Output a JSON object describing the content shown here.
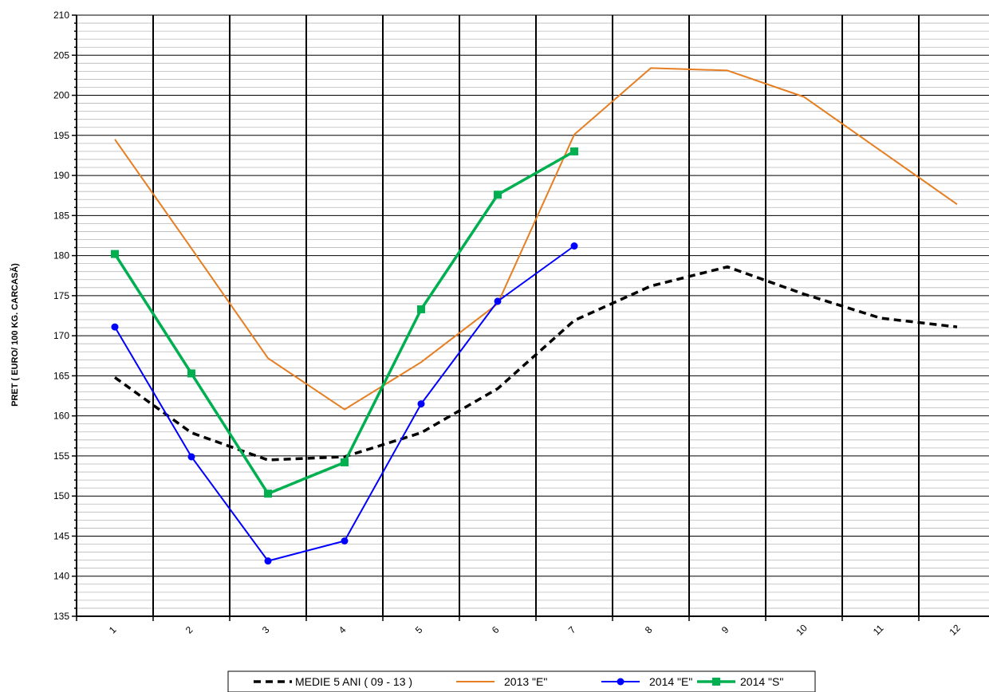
{
  "chart_data": {
    "type": "line",
    "x": [
      1,
      2,
      3,
      4,
      5,
      6,
      7,
      8,
      9,
      10,
      11,
      12
    ],
    "xticks": [
      "1",
      "2",
      "3",
      "4",
      "5",
      "6",
      "7",
      "8",
      "9",
      "10",
      "11",
      "12"
    ],
    "ylabel": "PRET ( EURO/ 100 KG. CARCASĂ)",
    "ylim": [
      135,
      210
    ],
    "ytick_step": 5,
    "yticks": [
      "135",
      "140",
      "145",
      "150",
      "155",
      "160",
      "165",
      "170",
      "175",
      "180",
      "185",
      "190",
      "195",
      "200",
      "205",
      "210"
    ],
    "grid": true,
    "legend_position": "bottom-center",
    "series": [
      {
        "name": "MEDIE 5 ANI ( 09 - 13 )",
        "color": "#000000",
        "style": "dashed",
        "marker": "none",
        "values": [
          164.8,
          157.9,
          154.5,
          154.9,
          157.9,
          163.4,
          171.9,
          176.2,
          178.6,
          175.2,
          172.2,
          171.1
        ]
      },
      {
        "name": "2013 \"E\"",
        "color": "#E67E22",
        "style": "solid",
        "marker": "none",
        "values": [
          194.5,
          180.9,
          167.2,
          160.8,
          166.7,
          174.0,
          195.1,
          203.4,
          203.1,
          199.8,
          193.1,
          186.4
        ]
      },
      {
        "name": "2014 \"E\"",
        "color": "#0000FF",
        "style": "solid",
        "marker": "circle",
        "values": [
          171.1,
          154.9,
          141.9,
          144.4,
          161.5,
          174.3,
          181.2,
          null,
          null,
          null,
          null,
          null
        ]
      },
      {
        "name": "2014 \"S\"",
        "color": "#00B050",
        "style": "solid",
        "marker": "square",
        "values": [
          180.2,
          165.3,
          150.3,
          154.2,
          173.3,
          187.6,
          193.0,
          null,
          null,
          null,
          null,
          null
        ]
      }
    ]
  }
}
